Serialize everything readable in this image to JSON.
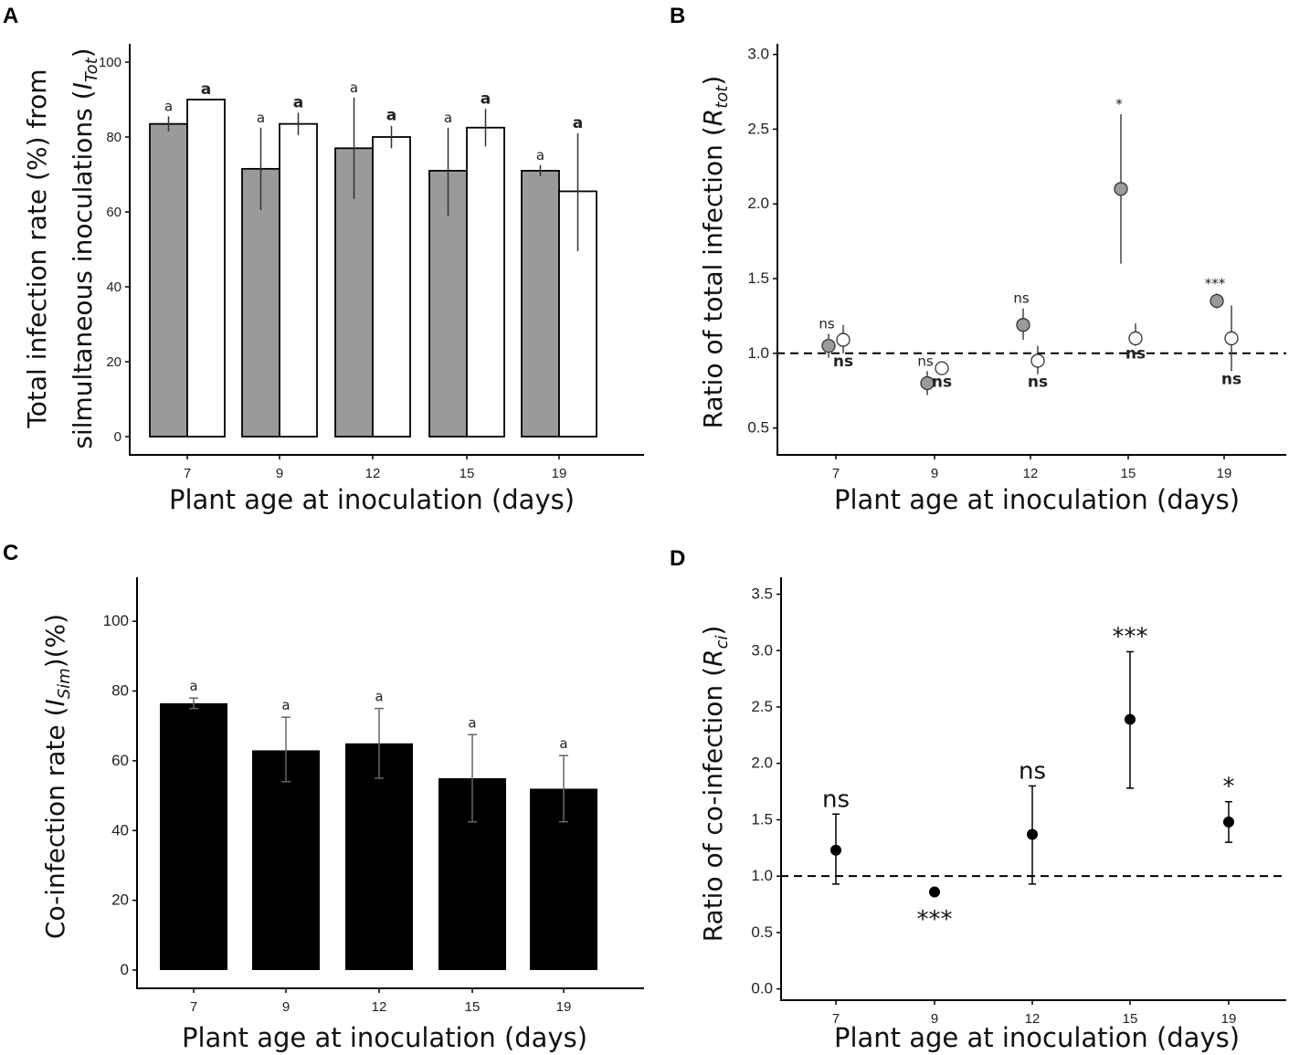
{
  "chart_data": [
    {
      "panel": "A",
      "type": "bar",
      "categories": [
        "7",
        "9",
        "12",
        "15",
        "19"
      ],
      "series": [
        {
          "name": "grey",
          "color": "#9a9a9a",
          "values": [
            83.5,
            71.5,
            77,
            71,
            71
          ],
          "err_low": [
            81.5,
            60.5,
            63.5,
            59,
            69.5
          ],
          "err_high": [
            85.5,
            82.5,
            90.5,
            82.5,
            72.5
          ],
          "labels": [
            "a",
            "a",
            "a",
            "a",
            "a"
          ]
        },
        {
          "name": "white",
          "color": "#ffffff",
          "values": [
            90,
            83.5,
            80,
            82.5,
            65.5
          ],
          "err_low": [
            90,
            80.5,
            77,
            77.5,
            49.5
          ],
          "err_high": [
            90,
            86.5,
            83,
            87.5,
            81
          ],
          "labels": [
            "a",
            "a",
            "a",
            "a",
            "a"
          ]
        }
      ],
      "ylim": [
        0,
        100
      ],
      "yticks": [
        "0",
        "20",
        "40",
        "60",
        "80",
        "100"
      ],
      "xlabel": "Plant age at inoculation (days)",
      "ylabel_line1": "Total infection rate (%) from",
      "ylabel_line2_text": "silmultaneous inoculations (",
      "ylabel_symbol": "I",
      "ylabel_sub": "Tot",
      "ylabel_close": ")"
    },
    {
      "panel": "B",
      "type": "scatter",
      "categories": [
        "7",
        "9",
        "12",
        "15",
        "19"
      ],
      "series": [
        {
          "name": "grey",
          "color": "#9a9a9a",
          "values": [
            1.05,
            0.8,
            1.19,
            2.1,
            1.35
          ],
          "err_low": [
            0.97,
            0.72,
            1.09,
            1.6,
            1.3
          ],
          "err_high": [
            1.13,
            0.88,
            1.3,
            2.6,
            1.4
          ],
          "labels": [
            "ns",
            "ns",
            "ns",
            "*",
            "***"
          ]
        },
        {
          "name": "white",
          "color": "#ffffff",
          "values": [
            1.09,
            0.9,
            0.95,
            1.1,
            1.1
          ],
          "err_low": [
            1.0,
            0.86,
            0.86,
            1.05,
            0.88
          ],
          "err_high": [
            1.19,
            0.94,
            1.05,
            1.2,
            1.32
          ],
          "labels": [
            "ns",
            "ns",
            "ns",
            "ns",
            "ns"
          ]
        }
      ],
      "reference_line": 1.0,
      "ylim": [
        0.32,
        3.12
      ],
      "yticks": [
        "0.5",
        "1.0",
        "1.5",
        "2.0",
        "2.5",
        "3.0"
      ],
      "xlabel": "Plant age at inoculation (days)",
      "ylabel_text": "Ratio of total infection (",
      "ylabel_symbol": "R",
      "ylabel_sub": "tot",
      "ylabel_close": ")"
    },
    {
      "panel": "C",
      "type": "bar",
      "categories": [
        "7",
        "9",
        "12",
        "15",
        "19"
      ],
      "series": [
        {
          "name": "co-infection",
          "color": "#000000",
          "values": [
            76.5,
            63,
            65,
            55,
            52
          ],
          "err_low": [
            75,
            54,
            55,
            42.5,
            42.5
          ],
          "err_high": [
            78,
            72.5,
            75,
            67.5,
            61.5
          ],
          "labels": [
            "a",
            "a",
            "a",
            "a",
            "a"
          ]
        }
      ],
      "ylim": [
        0,
        110
      ],
      "yticks": [
        "0",
        "20",
        "40",
        "60",
        "80",
        "100"
      ],
      "xlabel": "Plant age at inoculation (days)",
      "ylabel_text": "Co-infection rate (",
      "ylabel_symbol": "I",
      "ylabel_sub": "Sim",
      "ylabel_close": ")(%)"
    },
    {
      "panel": "D",
      "type": "scatter",
      "categories": [
        "7",
        "9",
        "12",
        "15",
        "19"
      ],
      "series": [
        {
          "name": "co-infection ratio",
          "color": "#000000",
          "values": [
            1.23,
            0.86,
            1.37,
            2.39,
            1.48
          ],
          "err_low": [
            0.93,
            0.84,
            0.93,
            1.78,
            1.3
          ],
          "err_high": [
            1.55,
            0.88,
            1.8,
            2.99,
            1.66
          ],
          "labels": [
            "ns",
            "***",
            "ns",
            "***",
            "*"
          ],
          "label_position": [
            "above",
            "below",
            "above",
            "above",
            "above"
          ]
        }
      ],
      "reference_line": 1.0,
      "ylim": [
        -0.1,
        3.65
      ],
      "yticks": [
        "0.0",
        "0.5",
        "1.0",
        "1.5",
        "2.0",
        "2.5",
        "3.0",
        "3.5"
      ],
      "xlabel": "Plant age at inoculation (days)",
      "ylabel_text": "Ratio of co-infection  (",
      "ylabel_symbol": "R",
      "ylabel_sub": "ci",
      "ylabel_close": ")"
    }
  ],
  "panels": {
    "a": "A",
    "b": "B",
    "c": "C",
    "d": "D"
  }
}
